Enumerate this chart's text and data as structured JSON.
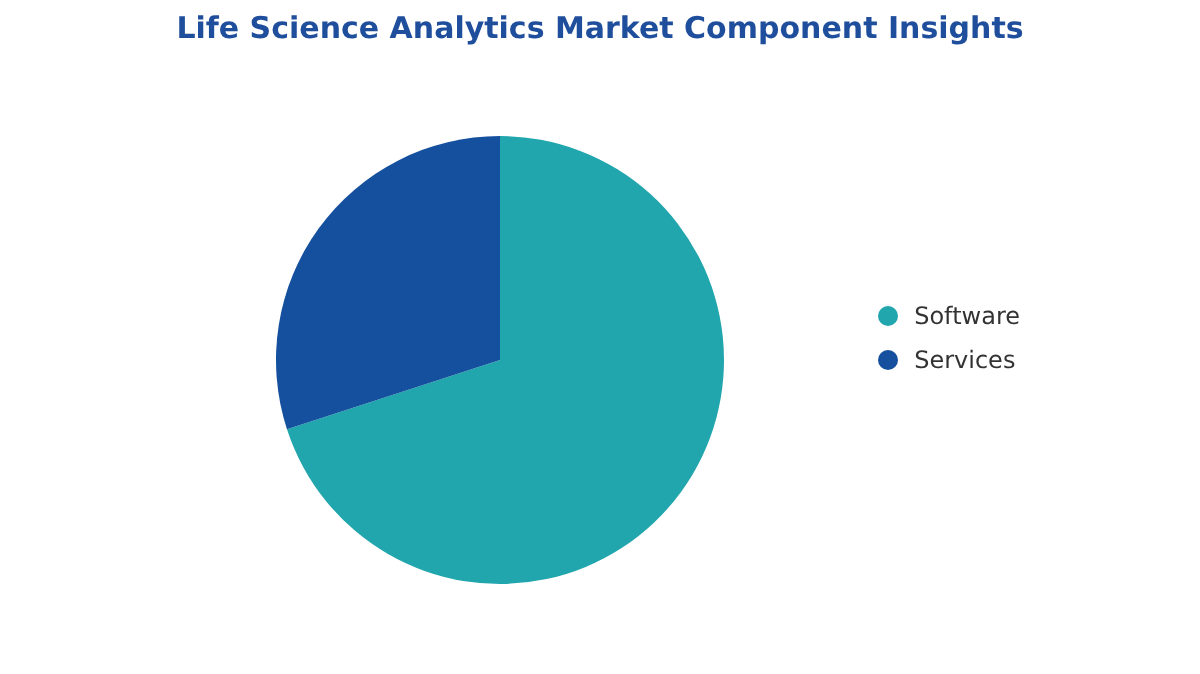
{
  "chart_data": {
    "type": "pie",
    "title": "Life Science Analytics Market Component Insights",
    "categories": [
      "Software",
      "Services"
    ],
    "values": [
      70,
      30
    ],
    "colors": [
      "#21a6ad",
      "#15509e"
    ],
    "legend": "right"
  }
}
